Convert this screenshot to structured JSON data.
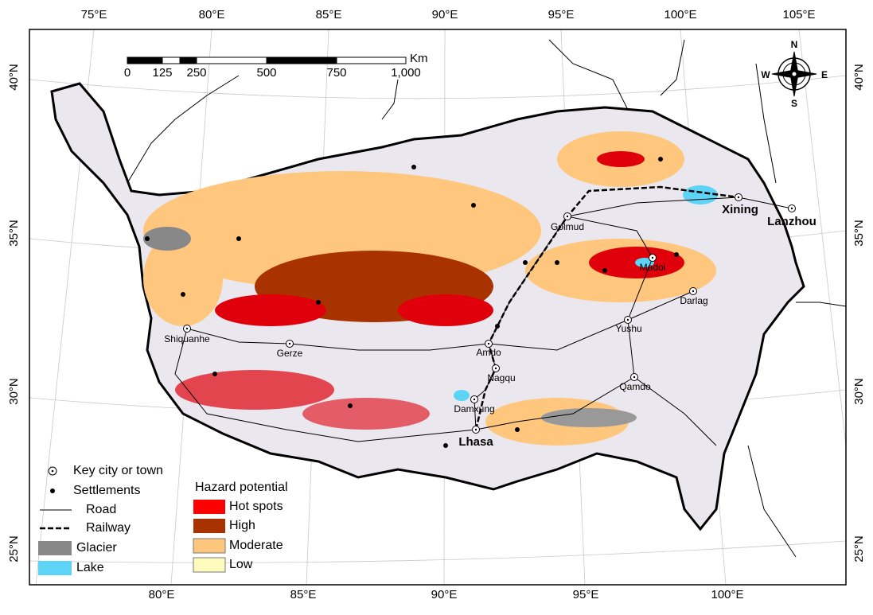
{
  "graticule": {
    "top_labels": [
      "75°E",
      "80°E",
      "85°E",
      "90°E",
      "95°E",
      "100°E",
      "105°E"
    ],
    "bottom_labels": [
      "80°E",
      "85°E",
      "90°E",
      "95°E",
      "100°E"
    ],
    "left_labels": [
      "40°N",
      "35°N",
      "30°N",
      "25°N"
    ],
    "right_labels": [
      "40°N",
      "35°N",
      "30°N",
      "25°N"
    ]
  },
  "scale_bar": {
    "unit": "Km",
    "labels": [
      "0",
      "125",
      "250",
      "500",
      "750",
      "1,000"
    ]
  },
  "compass": {
    "n": "N",
    "s": "S",
    "w": "W",
    "e": "E"
  },
  "places": [
    {
      "label": "Xining"
    },
    {
      "label": "Lanzhou"
    },
    {
      "label": "Golmud"
    },
    {
      "label": "Madoi"
    },
    {
      "label": "Darlag"
    },
    {
      "label": "Yushu"
    },
    {
      "label": "Shiquanhe"
    },
    {
      "label": "Gerze"
    },
    {
      "label": "Amdo"
    },
    {
      "label": "Nagqu"
    },
    {
      "label": "Qamdo"
    },
    {
      "label": "Damxung"
    },
    {
      "label": "Lhasa"
    }
  ],
  "legend": {
    "symbols": [
      "Key city or town",
      "Settlements",
      "Road",
      "Railway",
      "Glacier",
      "Lake"
    ],
    "hazard_title": "Hazard potential",
    "hazard_classes": [
      "Hot spots",
      "High",
      "Moderate",
      "Low"
    ]
  }
}
